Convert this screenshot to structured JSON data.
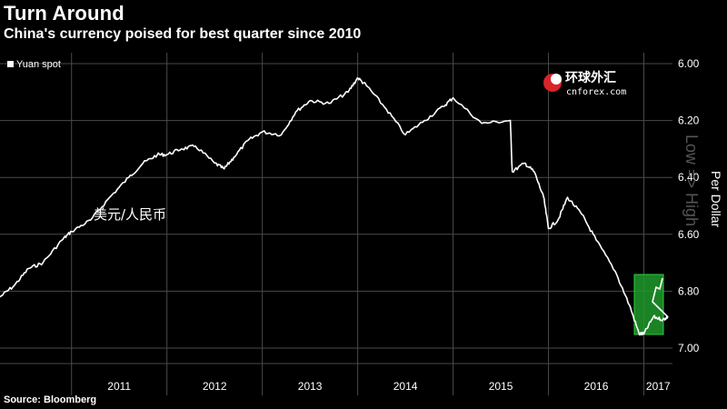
{
  "title": "Turn Around",
  "subtitle": "China's currency poised for best quarter since 2010",
  "source": "Source: Bloomberg",
  "watermark": {
    "cn": "环球外汇",
    "en": "cnforex.com"
  },
  "annotation": "美元/人民币",
  "highlight_color": "#1f9a2a",
  "line_color": "#ffffff",
  "chart_data": {
    "type": "line",
    "ylabel": "Per Dollar",
    "ylabel_secondary": "Low => High",
    "ylim": [
      6.0,
      7.0
    ],
    "y_inverted": true,
    "yticks": [
      "6.00",
      "6.20",
      "6.40",
      "6.60",
      "6.80",
      "7.00"
    ],
    "xlim": [
      2010.25,
      2017.3
    ],
    "xticks": [
      "2011",
      "2012",
      "2013",
      "2014",
      "2015",
      "2016",
      "2017"
    ],
    "grid": true,
    "legend": "top-left",
    "series": [
      {
        "name": "Yuan spot",
        "x": [
          2010.25,
          2010.4,
          2010.55,
          2010.7,
          2010.9,
          2011.0,
          2011.2,
          2011.4,
          2011.6,
          2011.75,
          2011.9,
          2012.0,
          2012.15,
          2012.3,
          2012.5,
          2012.6,
          2012.7,
          2012.85,
          2013.0,
          2013.2,
          2013.35,
          2013.5,
          2013.7,
          2013.9,
          2014.0,
          2014.1,
          2014.3,
          2014.5,
          2014.7,
          2014.9,
          2015.0,
          2015.3,
          2015.6,
          2015.62,
          2015.75,
          2015.85,
          2015.95,
          2016.0,
          2016.1,
          2016.2,
          2016.35,
          2016.5,
          2016.7,
          2016.85,
          2016.95,
          2017.0,
          2017.1,
          2017.2,
          2017.25
        ],
        "y": [
          6.82,
          6.78,
          6.72,
          6.7,
          6.62,
          6.59,
          6.55,
          6.47,
          6.4,
          6.35,
          6.32,
          6.32,
          6.3,
          6.29,
          6.35,
          6.37,
          6.33,
          6.27,
          6.24,
          6.25,
          6.17,
          6.13,
          6.14,
          6.1,
          6.05,
          6.08,
          6.16,
          6.25,
          6.2,
          6.15,
          6.12,
          6.21,
          6.2,
          6.38,
          6.35,
          6.38,
          6.47,
          6.58,
          6.55,
          6.47,
          6.53,
          6.62,
          6.73,
          6.85,
          6.95,
          6.95,
          6.89,
          6.9,
          6.89
        ]
      }
    ]
  }
}
